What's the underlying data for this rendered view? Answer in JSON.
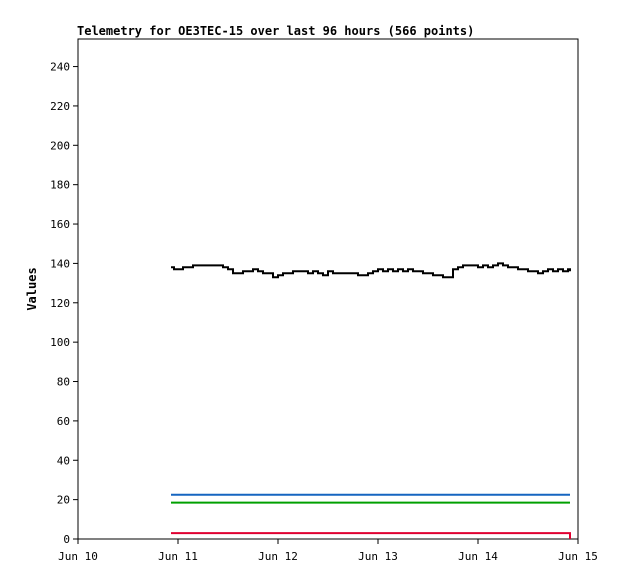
{
  "chart_data": {
    "type": "line",
    "title": "Telemetry for OE3TEC-15 over last 96 hours (566 points)",
    "xlabel": "",
    "ylabel": "Values",
    "x_ticks": [
      "Jun 10",
      "Jun 11",
      "Jun 12",
      "Jun 13",
      "Jun 14",
      "Jun 15"
    ],
    "y_ticks": [
      0,
      20,
      40,
      60,
      80,
      100,
      120,
      140,
      160,
      180,
      200,
      220,
      240
    ],
    "xlim": [
      0,
      5
    ],
    "ylim": [
      0,
      254
    ],
    "grid": false,
    "legend": "none",
    "series": [
      {
        "color": "#000000",
        "x": [
          0.93,
          0.96,
          1.0,
          1.05,
          1.1,
          1.15,
          1.2,
          1.25,
          1.3,
          1.35,
          1.4,
          1.45,
          1.5,
          1.55,
          1.6,
          1.65,
          1.7,
          1.75,
          1.8,
          1.85,
          1.9,
          1.95,
          2.0,
          2.05,
          2.1,
          2.15,
          2.2,
          2.25,
          2.3,
          2.35,
          2.4,
          2.45,
          2.5,
          2.55,
          2.6,
          2.65,
          2.7,
          2.75,
          2.8,
          2.85,
          2.9,
          2.95,
          3.0,
          3.05,
          3.1,
          3.15,
          3.2,
          3.25,
          3.3,
          3.35,
          3.4,
          3.45,
          3.5,
          3.55,
          3.6,
          3.65,
          3.7,
          3.75,
          3.8,
          3.85,
          3.9,
          3.95,
          4.0,
          4.05,
          4.1,
          4.15,
          4.2,
          4.25,
          4.3,
          4.35,
          4.4,
          4.45,
          4.5,
          4.55,
          4.6,
          4.65,
          4.7,
          4.75,
          4.8,
          4.85,
          4.9,
          4.92
        ],
        "values": [
          138,
          137,
          137,
          138,
          138,
          139,
          139,
          139,
          139,
          139,
          139,
          138,
          137,
          135,
          135,
          136,
          136,
          137,
          136,
          135,
          135,
          133,
          134,
          135,
          135,
          136,
          136,
          136,
          135,
          136,
          135,
          134,
          136,
          135,
          135,
          135,
          135,
          135,
          134,
          134,
          135,
          136,
          137,
          136,
          137,
          136,
          137,
          136,
          137,
          136,
          136,
          135,
          135,
          134,
          134,
          133,
          133,
          137,
          138,
          139,
          139,
          139,
          138,
          139,
          138,
          139,
          140,
          139,
          138,
          138,
          137,
          137,
          136,
          136,
          135,
          136,
          137,
          136,
          137,
          136,
          137,
          136
        ]
      },
      {
        "color": "#1565c0",
        "x": [
          0.93,
          4.92
        ],
        "values": [
          22.5,
          22.5
        ]
      },
      {
        "color": "#00a000",
        "x": [
          0.93,
          4.92
        ],
        "values": [
          18.5,
          18.5
        ]
      },
      {
        "color": "#e00030",
        "x": [
          0.93,
          4.9,
          4.92
        ],
        "values": [
          3,
          3,
          0
        ]
      }
    ]
  }
}
